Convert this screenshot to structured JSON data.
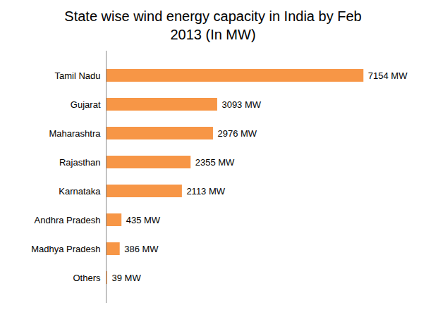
{
  "chart_data": {
    "type": "bar",
    "title": "State wise wind energy capacity in India by Feb 2013 (In MW)",
    "orientation": "horizontal",
    "categories": [
      "Tamil Nadu",
      "Gujarat",
      "Maharashtra",
      "Rajasthan",
      "Karnataka",
      "Andhra Pradesh",
      "Madhya Pradesh",
      "Others"
    ],
    "values": [
      7154,
      3093,
      2976,
      2355,
      2113,
      435,
      386,
      39
    ],
    "value_labels": [
      "7154 MW",
      "3093 MW",
      "2976 MW",
      "2355 MW",
      "2113 MW",
      "435 MW",
      "386 MW",
      "39 MW"
    ],
    "data_labels": true,
    "color": "#f79646",
    "xlim": [
      0,
      8500
    ],
    "tick_labels": "y",
    "grid": false
  }
}
